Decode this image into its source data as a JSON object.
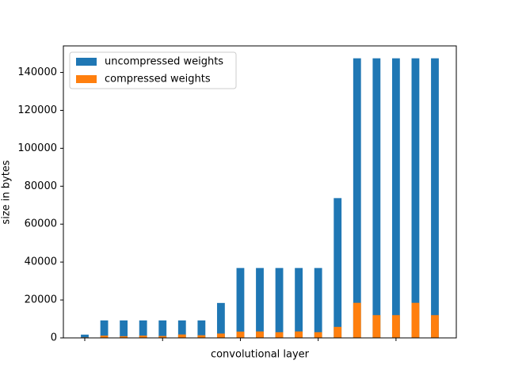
{
  "chart_data": {
    "type": "bar",
    "x_label": "convolutional layer",
    "y_label": "size in bytes",
    "x": [
      0,
      1,
      2,
      3,
      4,
      5,
      6,
      7,
      8,
      9,
      10,
      11,
      12,
      13,
      14,
      15,
      16,
      17,
      18
    ],
    "series": [
      {
        "name": "uncompressed weights",
        "color": "#1f77b4",
        "values": [
          1728,
          9216,
          9216,
          9216,
          9216,
          9216,
          9216,
          18432,
          36864,
          36864,
          36864,
          36864,
          36864,
          73728,
          147456,
          147456,
          147456,
          147456,
          147456
        ]
      },
      {
        "name": "compressed weights",
        "color": "#ff7f0e",
        "values": [
          300,
          1200,
          900,
          1200,
          1000,
          1800,
          1400,
          2300,
          3300,
          3400,
          3000,
          3400,
          3000,
          5800,
          18500,
          12000,
          12000,
          18500,
          12000
        ]
      }
    ],
    "xlim": [
      -1.1,
      19.1
    ],
    "xticks": [
      0,
      4,
      8,
      12,
      16
    ],
    "ylim": [
      0,
      154000
    ],
    "yticks": [
      0,
      20000,
      40000,
      60000,
      80000,
      100000,
      120000,
      140000
    ],
    "legend": "upper-left"
  }
}
